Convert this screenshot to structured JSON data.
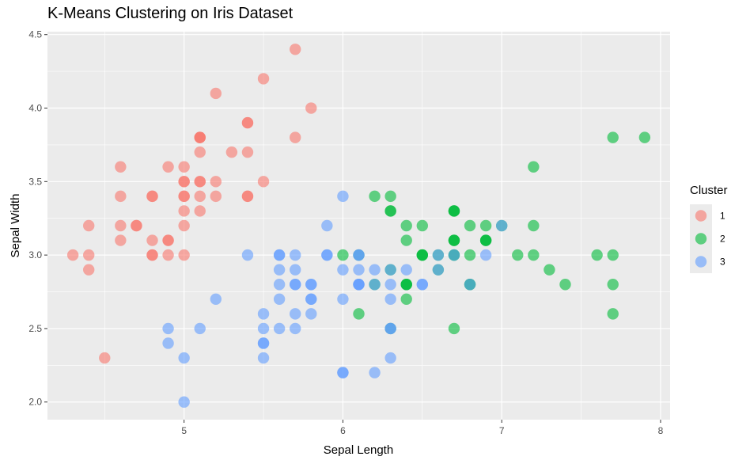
{
  "chart_data": {
    "type": "scatter",
    "title": "K-Means Clustering on Iris Dataset",
    "xlabel": "Sepal Length",
    "ylabel": "Sepal Width",
    "xlim": [
      4.14,
      8.06
    ],
    "ylim": [
      1.88,
      4.52
    ],
    "x_ticks": [
      5,
      6,
      7,
      8
    ],
    "x_tick_labels": [
      "5",
      "6",
      "7",
      "8"
    ],
    "y_ticks": [
      2.0,
      2.5,
      3.0,
      3.5,
      4.0,
      4.5
    ],
    "y_tick_labels": [
      "2.0",
      "2.5",
      "3.0",
      "3.5",
      "4.0",
      "4.5"
    ],
    "grid": true,
    "legend": {
      "title": "Cluster",
      "position": "right"
    },
    "series": [
      {
        "name": "1",
        "color": "#F8766D",
        "points": [
          [
            5.1,
            3.5
          ],
          [
            4.9,
            3.0
          ],
          [
            4.7,
            3.2
          ],
          [
            4.6,
            3.1
          ],
          [
            5.0,
            3.6
          ],
          [
            5.4,
            3.9
          ],
          [
            4.6,
            3.4
          ],
          [
            5.0,
            3.4
          ],
          [
            4.4,
            2.9
          ],
          [
            4.9,
            3.1
          ],
          [
            5.4,
            3.7
          ],
          [
            4.8,
            3.4
          ],
          [
            4.8,
            3.0
          ],
          [
            4.3,
            3.0
          ],
          [
            5.8,
            4.0
          ],
          [
            5.7,
            4.4
          ],
          [
            5.4,
            3.9
          ],
          [
            5.1,
            3.5
          ],
          [
            5.7,
            3.8
          ],
          [
            5.1,
            3.8
          ],
          [
            5.4,
            3.4
          ],
          [
            5.1,
            3.7
          ],
          [
            4.6,
            3.6
          ],
          [
            5.1,
            3.3
          ],
          [
            4.8,
            3.4
          ],
          [
            5.0,
            3.0
          ],
          [
            5.0,
            3.4
          ],
          [
            5.2,
            3.5
          ],
          [
            5.2,
            3.4
          ],
          [
            4.7,
            3.2
          ],
          [
            4.8,
            3.1
          ],
          [
            5.4,
            3.4
          ],
          [
            5.2,
            4.1
          ],
          [
            5.5,
            4.2
          ],
          [
            4.9,
            3.1
          ],
          [
            5.0,
            3.2
          ],
          [
            5.5,
            3.5
          ],
          [
            4.9,
            3.6
          ],
          [
            4.4,
            3.0
          ],
          [
            5.1,
            3.4
          ],
          [
            5.0,
            3.5
          ],
          [
            4.5,
            2.3
          ],
          [
            4.4,
            3.2
          ],
          [
            5.0,
            3.5
          ],
          [
            5.1,
            3.8
          ],
          [
            4.8,
            3.0
          ],
          [
            5.1,
            3.8
          ],
          [
            4.6,
            3.2
          ],
          [
            5.3,
            3.7
          ],
          [
            5.0,
            3.3
          ]
        ]
      },
      {
        "name": "2",
        "color": "#00BA38",
        "points": [
          [
            7.0,
            3.2
          ],
          [
            6.9,
            3.1
          ],
          [
            6.7,
            3.0
          ],
          [
            6.3,
            3.3
          ],
          [
            6.7,
            3.1
          ],
          [
            6.8,
            2.8
          ],
          [
            6.7,
            3.3
          ],
          [
            7.1,
            3.0
          ],
          [
            6.3,
            2.9
          ],
          [
            6.5,
            3.0
          ],
          [
            7.6,
            3.0
          ],
          [
            7.3,
            2.9
          ],
          [
            6.7,
            2.5
          ],
          [
            7.2,
            3.6
          ],
          [
            6.5,
            3.2
          ],
          [
            6.4,
            2.7
          ],
          [
            6.8,
            3.0
          ],
          [
            6.4,
            3.2
          ],
          [
            6.5,
            3.0
          ],
          [
            7.7,
            3.8
          ],
          [
            7.7,
            2.6
          ],
          [
            6.9,
            3.2
          ],
          [
            7.7,
            2.8
          ],
          [
            6.7,
            3.3
          ],
          [
            7.2,
            3.2
          ],
          [
            6.2,
            2.8
          ],
          [
            6.1,
            3.0
          ],
          [
            6.4,
            2.8
          ],
          [
            7.2,
            3.0
          ],
          [
            7.4,
            2.8
          ],
          [
            7.9,
            3.8
          ],
          [
            6.4,
            2.8
          ],
          [
            6.1,
            2.6
          ],
          [
            7.7,
            3.0
          ],
          [
            6.3,
            3.4
          ],
          [
            6.4,
            3.1
          ],
          [
            6.0,
            3.0
          ],
          [
            6.9,
            3.1
          ],
          [
            6.7,
            3.1
          ],
          [
            6.9,
            3.1
          ],
          [
            6.8,
            3.2
          ],
          [
            6.7,
            3.3
          ],
          [
            6.7,
            3.0
          ],
          [
            6.5,
            3.0
          ],
          [
            6.2,
            3.4
          ],
          [
            6.4,
            2.8
          ],
          [
            6.6,
            3.0
          ],
          [
            6.7,
            3.1
          ],
          [
            6.6,
            2.9
          ],
          [
            6.8,
            2.8
          ],
          [
            6.3,
            3.3
          ],
          [
            6.3,
            2.5
          ]
        ]
      },
      {
        "name": "3",
        "color": "#619CFF",
        "points": [
          [
            5.5,
            2.3
          ],
          [
            6.5,
            2.8
          ],
          [
            5.7,
            2.8
          ],
          [
            4.9,
            2.4
          ],
          [
            5.2,
            2.7
          ],
          [
            5.0,
            2.0
          ],
          [
            5.9,
            3.0
          ],
          [
            6.0,
            2.2
          ],
          [
            6.1,
            2.9
          ],
          [
            5.6,
            2.9
          ],
          [
            5.6,
            3.0
          ],
          [
            5.8,
            2.7
          ],
          [
            6.2,
            2.2
          ],
          [
            5.6,
            2.5
          ],
          [
            5.9,
            3.2
          ],
          [
            6.1,
            2.8
          ],
          [
            6.3,
            2.5
          ],
          [
            6.1,
            2.8
          ],
          [
            6.4,
            2.9
          ],
          [
            6.0,
            2.9
          ],
          [
            5.7,
            2.6
          ],
          [
            5.5,
            2.4
          ],
          [
            5.5,
            2.4
          ],
          [
            5.8,
            2.7
          ],
          [
            6.0,
            2.7
          ],
          [
            5.4,
            3.0
          ],
          [
            6.0,
            3.4
          ],
          [
            6.3,
            2.3
          ],
          [
            5.6,
            3.0
          ],
          [
            5.5,
            2.5
          ],
          [
            5.5,
            2.6
          ],
          [
            6.1,
            3.0
          ],
          [
            5.8,
            2.6
          ],
          [
            5.0,
            2.3
          ],
          [
            5.6,
            2.7
          ],
          [
            5.7,
            3.0
          ],
          [
            5.7,
            2.9
          ],
          [
            6.2,
            2.9
          ],
          [
            5.1,
            2.5
          ],
          [
            5.7,
            2.8
          ],
          [
            5.8,
            2.8
          ],
          [
            4.9,
            2.5
          ],
          [
            5.7,
            2.5
          ],
          [
            5.8,
            2.8
          ],
          [
            6.0,
            2.2
          ],
          [
            5.6,
            2.8
          ],
          [
            6.3,
            2.7
          ],
          [
            6.2,
            2.8
          ],
          [
            6.1,
            3.0
          ],
          [
            7.0,
            3.2
          ],
          [
            6.3,
            2.8
          ],
          [
            6.6,
            2.9
          ],
          [
            6.9,
            3.0
          ],
          [
            6.5,
            2.8
          ],
          [
            6.3,
            2.9
          ],
          [
            6.8,
            2.8
          ],
          [
            5.9,
            3.0
          ],
          [
            6.1,
            2.8
          ],
          [
            6.7,
            3.0
          ],
          [
            6.6,
            3.0
          ],
          [
            6.3,
            2.5
          ]
        ]
      }
    ]
  }
}
